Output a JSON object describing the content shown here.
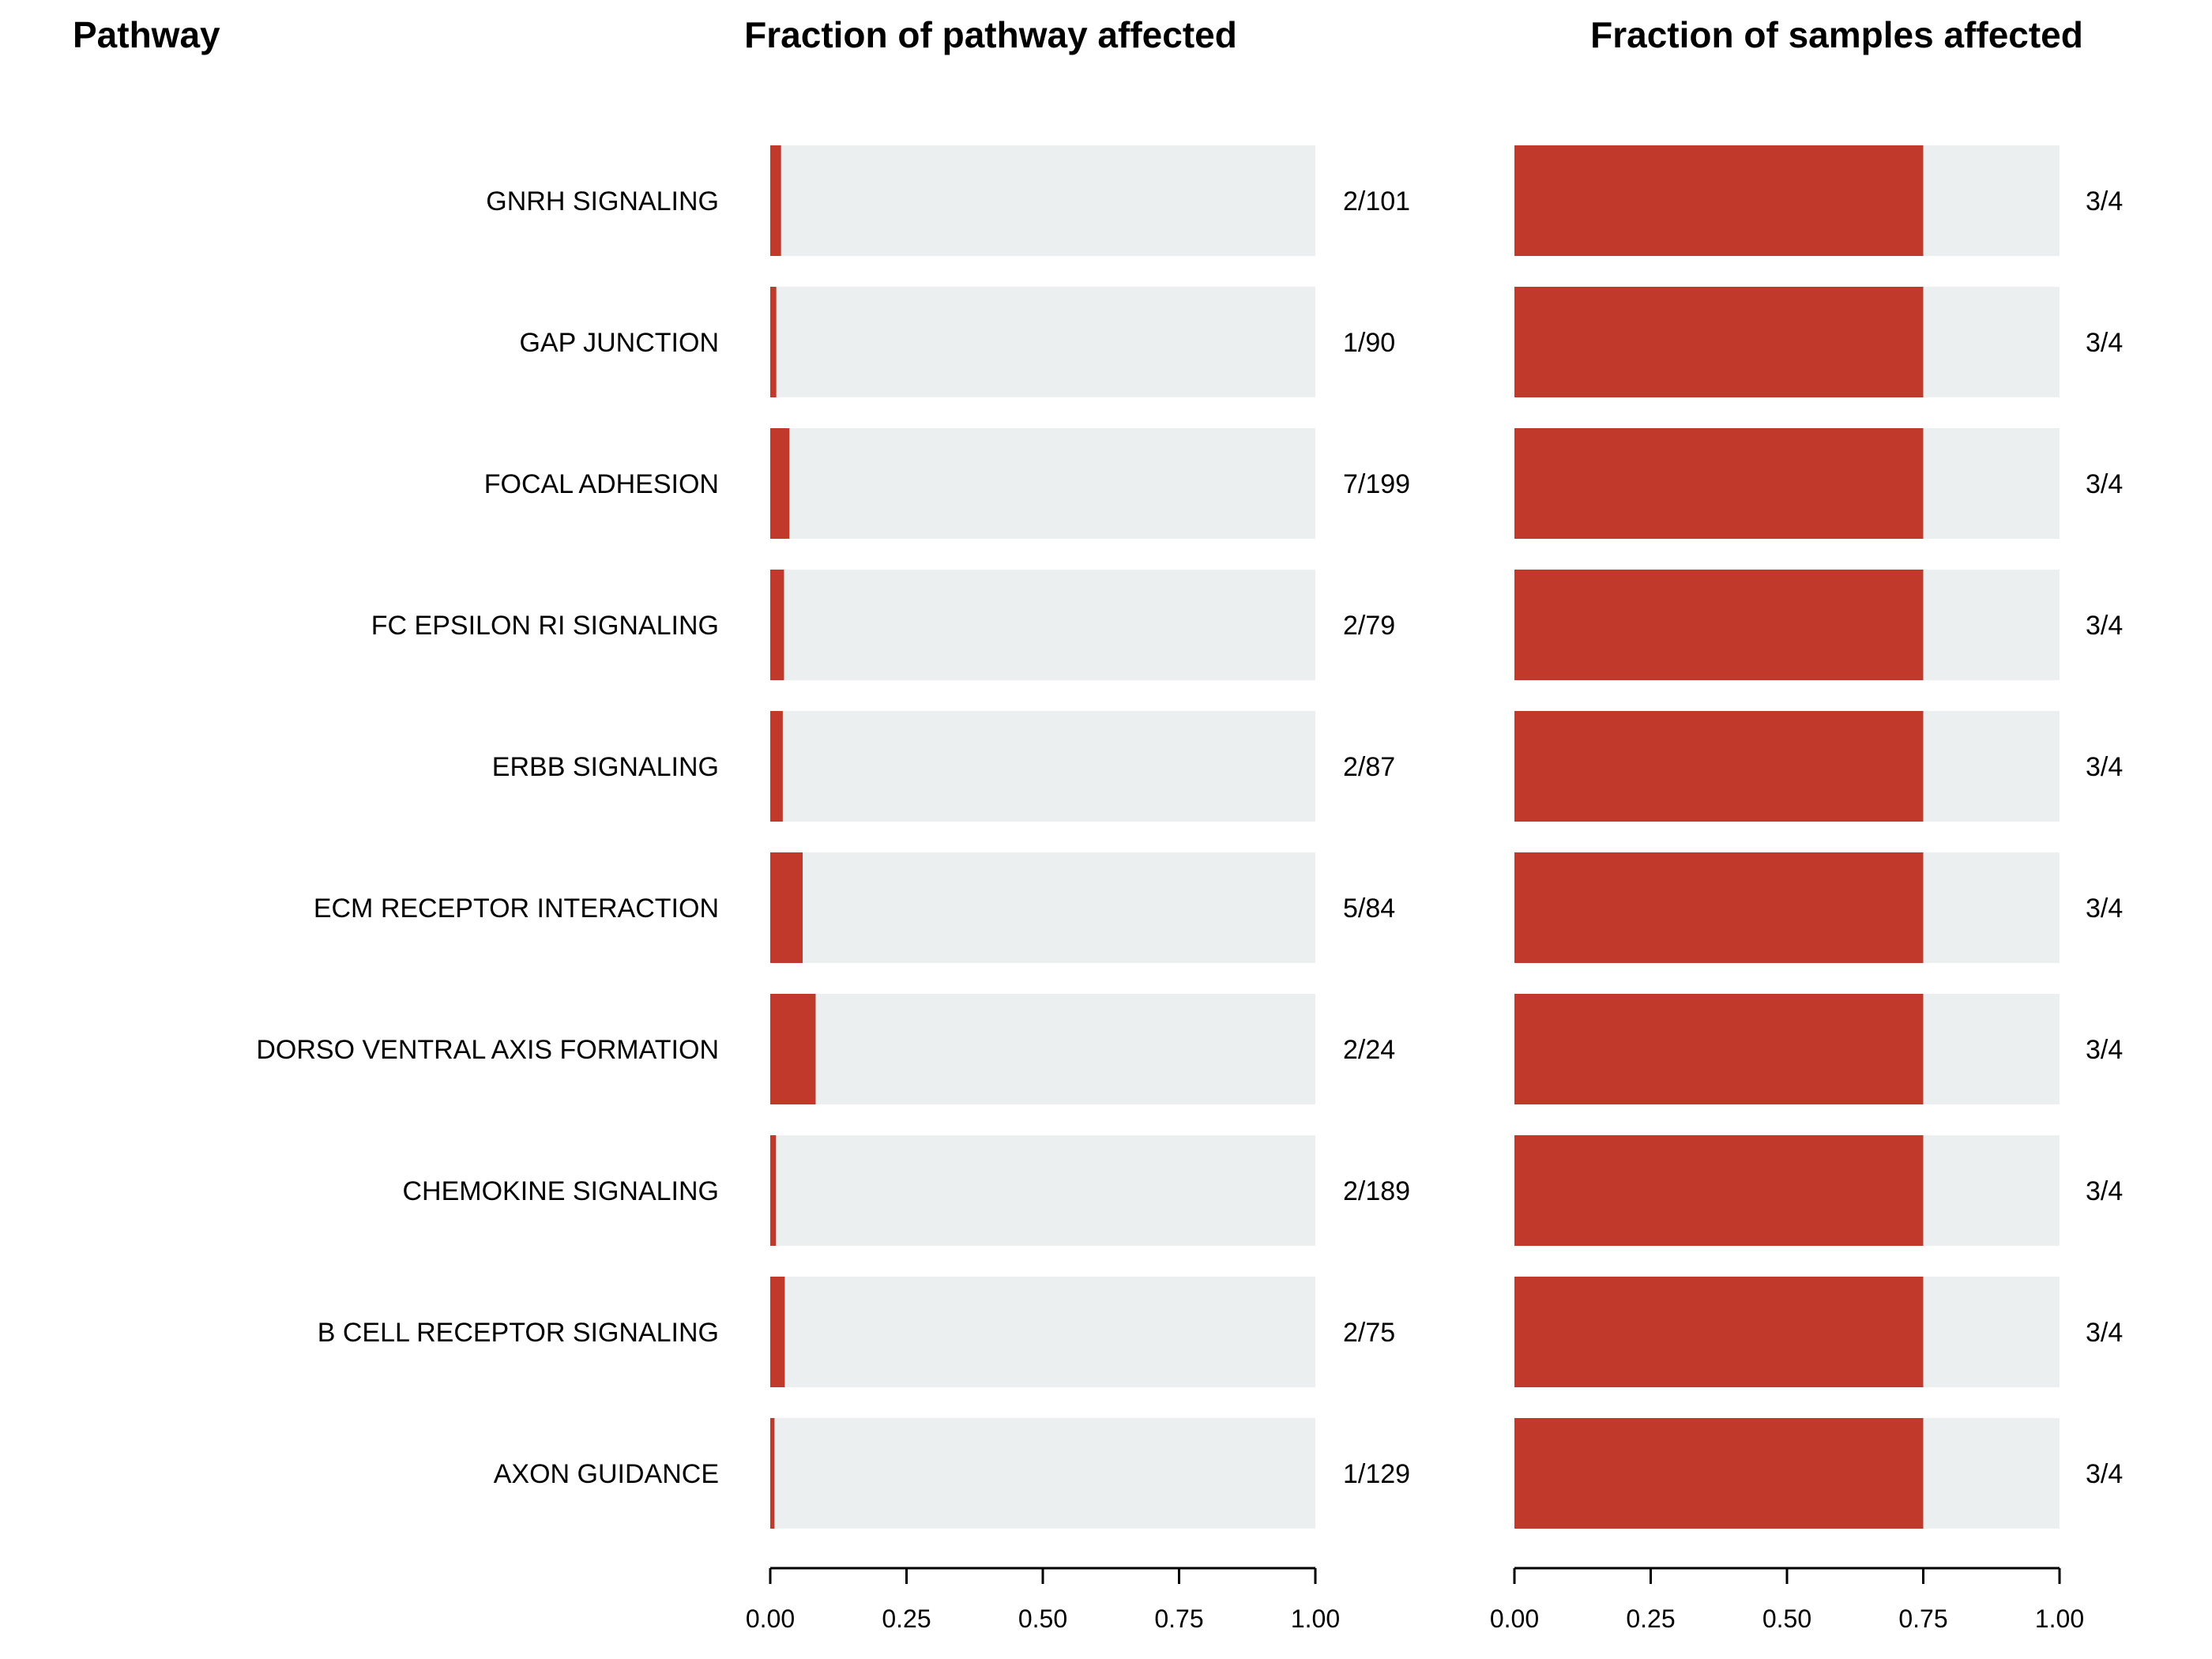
{
  "headers": {
    "pathway": "Pathway",
    "fraction_pathway": "Fraction of pathway affected",
    "fraction_samples": "Fraction of samples affected"
  },
  "colors": {
    "affected": "#c0392b",
    "background_bar": "#eceff0"
  },
  "chart_data": {
    "type": "bar",
    "orientation": "horizontal",
    "categories": [
      "GNRH SIGNALING",
      "GAP JUNCTION",
      "FOCAL ADHESION",
      "FC EPSILON RI SIGNALING",
      "ERBB SIGNALING",
      "ECM RECEPTOR INTERACTION",
      "DORSO VENTRAL AXIS FORMATION",
      "CHEMOKINE SIGNALING",
      "B CELL RECEPTOR SIGNALING",
      "AXON GUIDANCE"
    ],
    "panels": [
      {
        "title": "Fraction of pathway affected",
        "values": [
          0.0198,
          0.0111,
          0.0352,
          0.0253,
          0.023,
          0.0595,
          0.0833,
          0.0106,
          0.0267,
          0.0078
        ],
        "labels": [
          "2/101",
          "1/90",
          "7/199",
          "2/79",
          "2/87",
          "5/84",
          "2/24",
          "2/189",
          "2/75",
          "1/129"
        ],
        "xlim": [
          0,
          1
        ],
        "ticks": [
          "0.00",
          "0.25",
          "0.50",
          "0.75",
          "1.00"
        ]
      },
      {
        "title": "Fraction of samples affected",
        "values": [
          0.75,
          0.75,
          0.75,
          0.75,
          0.75,
          0.75,
          0.75,
          0.75,
          0.75,
          0.75
        ],
        "labels": [
          "3/4",
          "3/4",
          "3/4",
          "3/4",
          "3/4",
          "3/4",
          "3/4",
          "3/4",
          "3/4",
          "3/4"
        ],
        "xlim": [
          0,
          1
        ],
        "ticks": [
          "0.00",
          "0.25",
          "0.50",
          "0.75",
          "1.00"
        ]
      }
    ],
    "grid": false
  }
}
